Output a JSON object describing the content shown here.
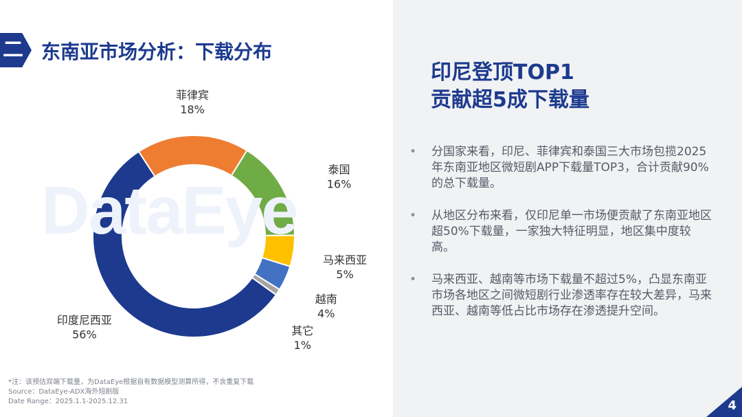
{
  "header": {
    "section_number": "二",
    "title": "东南亚市场分析：下载分布"
  },
  "headline": {
    "line1": "印尼登顶TOP1",
    "line2": "贡献超5成下载量"
  },
  "bullets": [
    {
      "marker": "•",
      "text": "分国家来看，印尼、菲律宾和泰国三大市场包揽2025年东南亚地区微短剧APP下载量TOP3，合计贡献90%的总下载量。"
    },
    {
      "marker": "•",
      "text": "从地区分布来看，仅印尼单一市场便贡献了东南亚地区超50%下载量，一家独大特征明显，地区集中度较高。"
    },
    {
      "marker": "•",
      "text": "马来西亚、越南等市场下载量不超过5%，凸显东南亚市场各地区之间微短剧行业渗透率存在较大差异，马来西亚、越南等低占比市场存在渗透提升空间。"
    }
  ],
  "watermark": "DataEye",
  "chart_data": {
    "type": "pie",
    "donut": true,
    "title": "",
    "legend": "none",
    "slices": [
      {
        "label": "菲律宾",
        "value": 18,
        "display": "18%",
        "color": "#ee7d31"
      },
      {
        "label": "泰国",
        "value": 16,
        "display": "16%",
        "color": "#6fac46"
      },
      {
        "label": "马来西亚",
        "value": 5,
        "display": "5%",
        "color": "#ffc000"
      },
      {
        "label": "越南",
        "value": 4,
        "display": "4%",
        "color": "#4372c4"
      },
      {
        "label": "其它",
        "value": 1,
        "display": "1%",
        "color": "#a5a5a5"
      },
      {
        "label": "印度尼西亚",
        "value": 56,
        "display": "56%",
        "color": "#1d3a8e"
      }
    ]
  },
  "footnote": {
    "line1": "*注：该预估双端下载量，为DataEye根据自有数据模型测算所得，不含重复下载",
    "line2": "Source：DataEye-ADX海外短剧版",
    "line3": "Date Range：2025.1.1-2025.12.31"
  },
  "page_number": "4",
  "colors": {
    "brand": "#1d3a8e",
    "panel": "#f1f2f4"
  }
}
